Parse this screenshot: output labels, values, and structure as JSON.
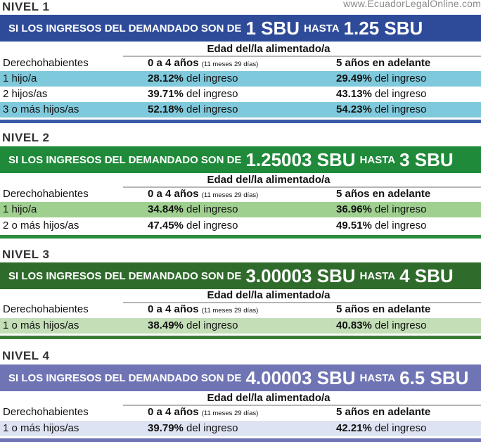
{
  "watermark": "www.EcuadorLegalOnline.com",
  "levels": [
    {
      "title": "NIVEL 1",
      "banner": {
        "prefix": "SI LOS INGRESOS DEL DEMANDADO SON DE",
        "from": "1 SBU",
        "mid": "HASTA",
        "to": "1.25 SBU"
      },
      "edad": "Edad del/la alimentado/a",
      "header": {
        "col1": "Derechohabientes",
        "col2": "0 a 4 años",
        "col2_note": "(11 meses 29 días)",
        "col3": "5 años en adelante"
      },
      "rows": [
        {
          "label": "1 hijo/a",
          "pct1": "28.12%",
          "pct2": "29.49%"
        },
        {
          "label": "2 hijos/as",
          "pct1": "39.71%",
          "pct2": "43.13%"
        },
        {
          "label": "3 o más hijos/as",
          "pct1": "52.18%",
          "pct2": "54.23%"
        }
      ],
      "suffix": "del ingreso",
      "colors": {
        "banner": "#2e4b9a",
        "shade": "#7fc9dc",
        "bar": "#3a5aa8"
      }
    },
    {
      "title": "NIVEL 2",
      "banner": {
        "prefix": "SI LOS INGRESOS DEL DEMANDADO SON DE",
        "from": "1.25003 SBU",
        "mid": "HASTA",
        "to": "3 SBU"
      },
      "edad": "Edad del/la alimentado/a",
      "header": {
        "col1": "Derechohabientes",
        "col2": "0 a 4 años",
        "col2_note": "(11 meses 29 días)",
        "col3": "5 años en adelante"
      },
      "rows": [
        {
          "label": "1 hijo/a",
          "pct1": "34.84%",
          "pct2": "36.96%"
        },
        {
          "label": "2 o más hijos/as",
          "pct1": "47.45%",
          "pct2": "49.51%"
        }
      ],
      "suffix": "del ingreso",
      "colors": {
        "banner": "#1f8a3a",
        "shade": "#9fd08f",
        "bar": "#2a8c3d"
      }
    },
    {
      "title": "NIVEL 3",
      "banner": {
        "prefix": "SI LOS INGRESOS DEL DEMANDADO SON DE",
        "from": "3.00003 SBU",
        "mid": "HASTA",
        "to": "4 SBU"
      },
      "edad": "Edad del/la alimentado/a",
      "header": {
        "col1": "Derechohabientes",
        "col2": "0 a 4 años",
        "col2_note": "(11 meses 29 días)",
        "col3": "5 años en adelante"
      },
      "rows": [
        {
          "label": "1 o más hijos/as",
          "pct1": "38.49%",
          "pct2": "40.83%"
        }
      ],
      "suffix": "del ingreso",
      "colors": {
        "banner": "#2f6b2a",
        "shade": "#c4dfb7",
        "bar": "#3c7a36"
      }
    },
    {
      "title": "NIVEL 4",
      "banner": {
        "prefix": "SI LOS INGRESOS DEL DEMANDADO SON DE",
        "from": "4.00003 SBU",
        "mid": "HASTA",
        "to": "6.5 SBU"
      },
      "edad": "Edad del/la alimentado/a",
      "header": {
        "col1": "Derechohabientes",
        "col2": "0 a 4 años",
        "col2_note": "(11 meses 29 días)",
        "col3": "5 años en adelante"
      },
      "rows": [
        {
          "label": "1 o más hijos/as",
          "pct1": "39.79%",
          "pct2": "42.21%"
        }
      ],
      "suffix": "del ingreso",
      "colors": {
        "banner": "#6e74b4",
        "shade": "#dde3f2",
        "bar": "#6e74b4"
      }
    }
  ]
}
